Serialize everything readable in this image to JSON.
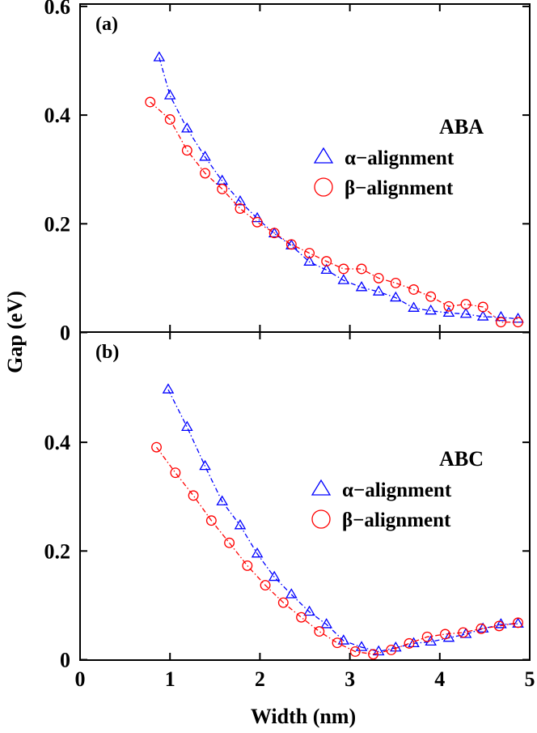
{
  "chart_data": [
    {
      "type": "line",
      "panel_label": "(a)",
      "legend_title": "ABA",
      "ylim": [
        0,
        0.6
      ],
      "xlim": [
        0,
        5
      ],
      "yticks": [
        "0",
        "0.2",
        "0.4",
        "0.6"
      ],
      "legend_position": "right",
      "series": [
        {
          "name": "α−alignment",
          "marker": "triangle",
          "color": "#0000ff",
          "x": [
            0.88,
            1.0,
            1.19,
            1.39,
            1.58,
            1.78,
            1.97,
            2.16,
            2.35,
            2.55,
            2.74,
            2.93,
            3.13,
            3.32,
            3.51,
            3.71,
            3.9,
            4.1,
            4.29,
            4.48,
            4.68,
            4.87
          ],
          "y": [
            0.506,
            0.436,
            0.375,
            0.323,
            0.279,
            0.241,
            0.21,
            0.182,
            0.16,
            0.13,
            0.115,
            0.096,
            0.083,
            0.075,
            0.064,
            0.045,
            0.04,
            0.036,
            0.034,
            0.029,
            0.028,
            0.025
          ]
        },
        {
          "name": "β−alignment",
          "marker": "circle",
          "color": "#ff0000",
          "x": [
            0.78,
            1.0,
            1.19,
            1.39,
            1.58,
            1.78,
            1.97,
            2.16,
            2.35,
            2.55,
            2.74,
            2.93,
            3.13,
            3.32,
            3.51,
            3.71,
            3.9,
            4.1,
            4.29,
            4.48,
            4.68,
            4.87
          ],
          "y": [
            0.424,
            0.392,
            0.335,
            0.293,
            0.264,
            0.228,
            0.203,
            0.183,
            0.162,
            0.146,
            0.131,
            0.117,
            0.117,
            0.1,
            0.091,
            0.079,
            0.066,
            0.048,
            0.052,
            0.047,
            0.019,
            0.019
          ]
        }
      ]
    },
    {
      "type": "line",
      "panel_label": "(b)",
      "legend_title": "ABC",
      "ylim": [
        0,
        0.59
      ],
      "xlim": [
        0,
        5
      ],
      "yticks": [
        "0",
        "0.2",
        "0.4"
      ],
      "xticks": [
        "0",
        "1",
        "2",
        "3",
        "4",
        "5"
      ],
      "xlabel": "Width (nm)",
      "legend_position": "right",
      "series": [
        {
          "name": "α−alignment",
          "marker": "triangle",
          "color": "#0000ff",
          "x": [
            0.98,
            1.19,
            1.39,
            1.58,
            1.78,
            1.97,
            2.16,
            2.35,
            2.55,
            2.74,
            2.93,
            3.13,
            3.32,
            3.51,
            3.71,
            3.9,
            4.1,
            4.29,
            4.48,
            4.68,
            4.87
          ],
          "y": [
            0.497,
            0.428,
            0.356,
            0.291,
            0.247,
            0.195,
            0.152,
            0.12,
            0.088,
            0.065,
            0.035,
            0.023,
            0.015,
            0.022,
            0.03,
            0.033,
            0.04,
            0.047,
            0.057,
            0.065,
            0.066
          ]
        },
        {
          "name": "β−alignment",
          "marker": "circle",
          "color": "#ff0000",
          "x": [
            0.85,
            1.06,
            1.26,
            1.46,
            1.66,
            1.86,
            2.06,
            2.26,
            2.46,
            2.66,
            2.86,
            3.06,
            3.26,
            3.46,
            3.66,
            3.86,
            4.06,
            4.26,
            4.46,
            4.66,
            4.87
          ],
          "y": [
            0.391,
            0.344,
            0.302,
            0.256,
            0.215,
            0.173,
            0.137,
            0.105,
            0.078,
            0.052,
            0.031,
            0.015,
            0.01,
            0.018,
            0.03,
            0.042,
            0.047,
            0.05,
            0.057,
            0.062,
            0.068
          ]
        }
      ]
    }
  ],
  "ylabel": "Gap (eV)"
}
